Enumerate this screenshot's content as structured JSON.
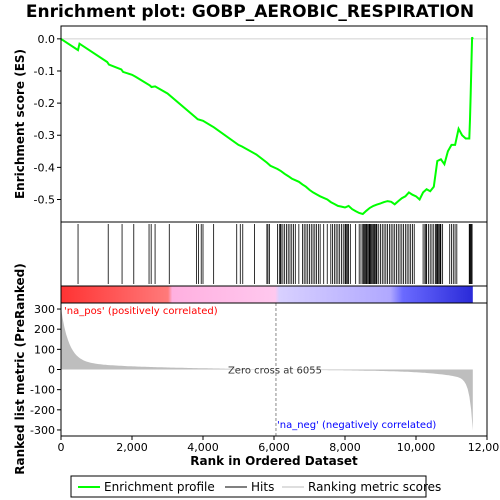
{
  "chart_data": {
    "type": "line",
    "title": "Enrichment plot: GOBP_AEROBIC_RESPIRATION",
    "xlabel": "Rank in Ordered Dataset",
    "ylabel_top": "Enrichment score (ES)",
    "ylabel_bottom": "Ranked list metric (PreRanked)",
    "xlim": [
      0,
      12000
    ],
    "x_ticks": [
      0,
      2000,
      4000,
      6000,
      8000,
      10000,
      12000
    ],
    "x_tick_labels": [
      "0",
      "2,000",
      "4,000",
      "6,000",
      "8,000",
      "10,000",
      "12,000"
    ],
    "es_ylim": [
      -0.57,
      0.04
    ],
    "es_ticks": [
      0.0,
      -0.1,
      -0.2,
      -0.3,
      -0.4,
      -0.5
    ],
    "es_tick_labels": [
      "0.0",
      "-0.1",
      "-0.2",
      "-0.3",
      "-0.4",
      "-0.5"
    ],
    "metric_ylim": [
      -330,
      330
    ],
    "metric_ticks": [
      300,
      200,
      100,
      0,
      -100,
      -200,
      -300
    ],
    "metric_tick_labels": [
      "300",
      "200",
      "100",
      "0",
      "-100",
      "-200",
      "-300"
    ],
    "n_genes": 11600,
    "zero_cross_rank": 6055,
    "zero_cross_label": "Zero cross at 6055",
    "pos_label": "'na_pos' (positively correlated)",
    "neg_label": "'na_neg' (negatively correlated)",
    "series": [
      {
        "name": "Enrichment profile",
        "color": "#00ff00",
        "x": [
          0,
          480,
          520,
          1300,
          1350,
          1700,
          1750,
          2000,
          2100,
          2500,
          2550,
          2650,
          3000,
          3800,
          3850,
          4000,
          4300,
          5000,
          5100,
          5500,
          5800,
          5900,
          6100,
          6200,
          6300,
          6400,
          6500,
          6700,
          6800,
          6900,
          7000,
          7100,
          7200,
          7300,
          7500,
          7600,
          7700,
          7800,
          7900,
          8000,
          8100,
          8200,
          8300,
          8400,
          8500,
          8600,
          8700,
          8800,
          8900,
          9000,
          9100,
          9200,
          9300,
          9400,
          9500,
          9600,
          9700,
          9800,
          9900,
          10000,
          10100,
          10200,
          10300,
          10400,
          10500,
          10600,
          10700,
          10800,
          10900,
          11000,
          11100,
          11200,
          11300,
          11400,
          11450,
          11500,
          11520,
          11540,
          11560,
          11580,
          11600
        ],
        "y": [
          0.0,
          -0.035,
          -0.015,
          -0.072,
          -0.08,
          -0.095,
          -0.103,
          -0.112,
          -0.118,
          -0.145,
          -0.15,
          -0.148,
          -0.17,
          -0.245,
          -0.25,
          -0.255,
          -0.275,
          -0.33,
          -0.335,
          -0.36,
          -0.385,
          -0.395,
          -0.405,
          -0.412,
          -0.42,
          -0.427,
          -0.435,
          -0.445,
          -0.453,
          -0.46,
          -0.47,
          -0.478,
          -0.484,
          -0.49,
          -0.5,
          -0.508,
          -0.514,
          -0.52,
          -0.522,
          -0.525,
          -0.52,
          -0.53,
          -0.536,
          -0.542,
          -0.545,
          -0.535,
          -0.526,
          -0.52,
          -0.516,
          -0.512,
          -0.508,
          -0.505,
          -0.507,
          -0.515,
          -0.505,
          -0.496,
          -0.49,
          -0.478,
          -0.485,
          -0.49,
          -0.5,
          -0.478,
          -0.468,
          -0.474,
          -0.46,
          -0.38,
          -0.375,
          -0.39,
          -0.35,
          -0.33,
          -0.33,
          -0.28,
          -0.3,
          -0.31,
          -0.31,
          -0.31,
          -0.25,
          -0.17,
          -0.08,
          0.005,
          0.0
        ]
      }
    ],
    "hits": [
      480,
      1330,
      1720,
      2050,
      2480,
      2540,
      2650,
      3050,
      3820,
      3870,
      3950,
      4000,
      4300,
      4950,
      5050,
      5120,
      5450,
      5800,
      5830,
      5870,
      6100,
      6150,
      6180,
      6200,
      6250,
      6300,
      6350,
      6400,
      6450,
      6500,
      6550,
      6600,
      6700,
      6800,
      6850,
      6900,
      6950,
      7000,
      7050,
      7100,
      7150,
      7200,
      7250,
      7300,
      7400,
      7500,
      7600,
      7650,
      7700,
      7750,
      7800,
      7850,
      7900,
      7950,
      8000,
      8020,
      8050,
      8080,
      8100,
      8150,
      8300,
      8400,
      8450,
      8500,
      8520,
      8550,
      8580,
      8600,
      8620,
      8650,
      8680,
      8700,
      8720,
      8750,
      8780,
      8800,
      8830,
      8850,
      8880,
      8900,
      8950,
      9000,
      9050,
      9100,
      9150,
      9200,
      9250,
      9300,
      9350,
      9400,
      9450,
      9500,
      9550,
      9600,
      9650,
      9700,
      9750,
      9800,
      9850,
      9900,
      9950,
      10200,
      10250,
      10280,
      10300,
      10350,
      10400,
      10450,
      10500,
      10550,
      10580,
      10600,
      10620,
      10650,
      10680,
      10700,
      10750,
      10950,
      11000,
      11050,
      11100,
      11150,
      11500,
      11520,
      11540,
      11560,
      11580
    ]
  },
  "legend": {
    "items": [
      {
        "label": "Enrichment profile",
        "color": "#00ff00"
      },
      {
        "label": "Hits",
        "color": "#000000"
      },
      {
        "label": "Ranking metric scores",
        "color": "#bebebe"
      }
    ]
  }
}
